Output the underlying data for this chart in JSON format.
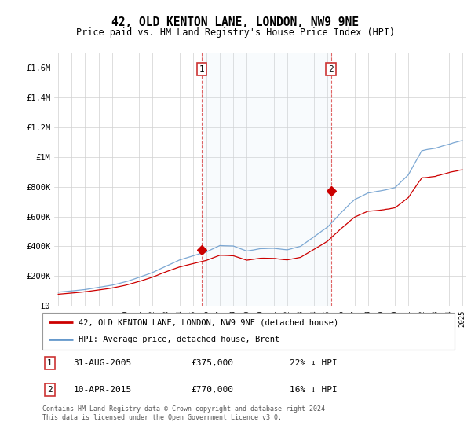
{
  "title": "42, OLD KENTON LANE, LONDON, NW9 9NE",
  "subtitle": "Price paid vs. HM Land Registry's House Price Index (HPI)",
  "ylim": [
    0,
    1700000
  ],
  "yticks": [
    0,
    200000,
    400000,
    600000,
    800000,
    1000000,
    1200000,
    1400000,
    1600000
  ],
  "ytick_labels": [
    "£0",
    "£200K",
    "£400K",
    "£600K",
    "£800K",
    "£1M",
    "£1.2M",
    "£1.4M",
    "£1.6M"
  ],
  "sale1_year": 2005.667,
  "sale1_price": 375000,
  "sale2_year": 2015.25,
  "sale2_price": 770000,
  "sale1_info": "31-AUG-2005",
  "sale1_price_str": "£375,000",
  "sale1_hpi_str": "22% ↓ HPI",
  "sale2_info": "10-APR-2015",
  "sale2_price_str": "£770,000",
  "sale2_hpi_str": "16% ↓ HPI",
  "red_color": "#cc0000",
  "blue_color": "#6699cc",
  "fill_color": "#d6e8f7",
  "legend_label_red": "42, OLD KENTON LANE, LONDON, NW9 9NE (detached house)",
  "legend_label_blue": "HPI: Average price, detached house, Brent",
  "footnote": "Contains HM Land Registry data © Crown copyright and database right 2024.\nThis data is licensed under the Open Government Licence v3.0."
}
